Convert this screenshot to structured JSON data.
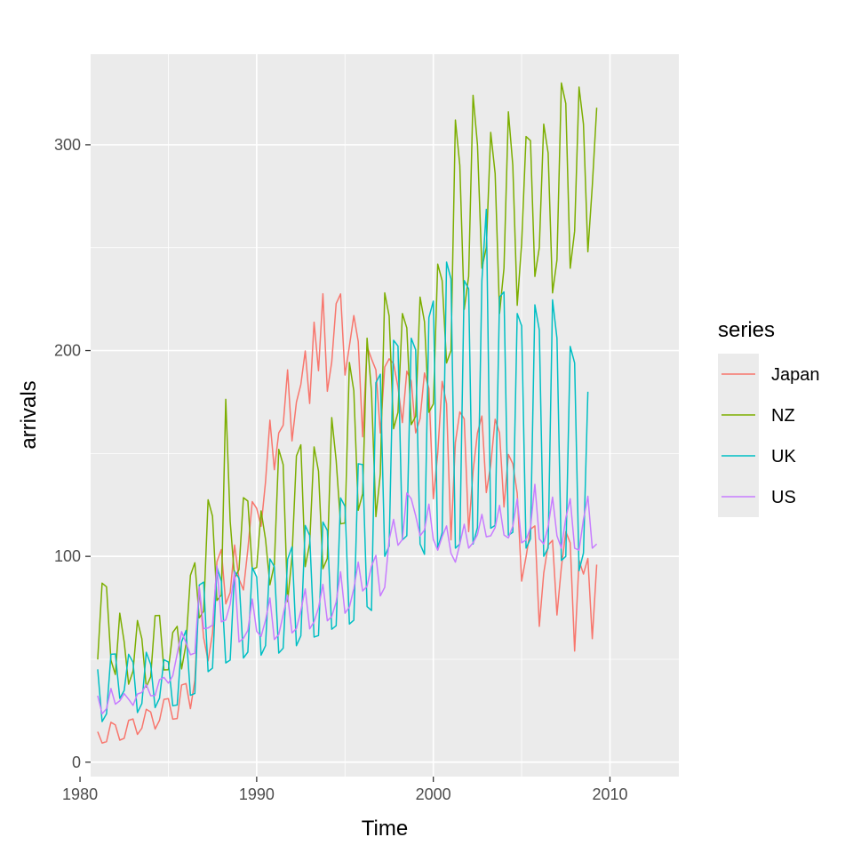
{
  "chart_data": {
    "type": "line",
    "xlabel": "Time",
    "ylabel": "arrivals",
    "xlim": [
      1980.6,
      2013.9
    ],
    "ylim": [
      -7,
      344
    ],
    "x_ticks": [
      1980,
      1990,
      2000,
      2010
    ],
    "y_ticks": [
      0,
      100,
      200,
      300
    ],
    "grid": true,
    "legend": {
      "title": "series",
      "position": "right"
    },
    "x_start": 1981.0,
    "x_step": 0.25,
    "series": [
      {
        "name": "Japan",
        "color": "#F8766D",
        "values": [
          14.8,
          9.3,
          10.0,
          19.4,
          18.1,
          10.7,
          11.6,
          20.3,
          21.0,
          13.5,
          16.5,
          25.7,
          24.4,
          16.1,
          20.3,
          30.5,
          30.9,
          20.9,
          21.2,
          37.5,
          38.2,
          26.0,
          39.8,
          84.2,
          60.4,
          49.2,
          62.6,
          97.4,
          103.3,
          76.9,
          82.4,
          105.5,
          89.0,
          83.7,
          103.4,
          126.6,
          123.3,
          114.6,
          136.1,
          166.2,
          142.1,
          160.0,
          163.7,
          190.6,
          156.1,
          174.9,
          183.5,
          199.8,
          174.3,
          213.8,
          190.2,
          227.6,
          180.2,
          194.5,
          222.8,
          227.5,
          188.1,
          202.2,
          217.0,
          204.4,
          158.1,
          202.0,
          196.0,
          190.6,
          160.0,
          192.0,
          196.0,
          193.6,
          182.3,
          165.0,
          190.0,
          185.2,
          160.0,
          166.9,
          189.1,
          181.6,
          128.0,
          150.0,
          185.0,
          174.2,
          108.0,
          155.4,
          170.2,
          166.8,
          112.0,
          141.4,
          160.0,
          168.2,
          131.0,
          144.4,
          166.6,
          160.0,
          124.0,
          149.5,
          145.0,
          130.6,
          88.0,
          99.8,
          113.2,
          114.8,
          66.0,
          91.8,
          105.5,
          107.8,
          71.5,
          94.8,
          112.0,
          106.6,
          54.0,
          98.0,
          91.4,
          99.0,
          60.0,
          96.0
        ]
      },
      {
        "name": "NZ",
        "color": "#7CAE00",
        "values": [
          49.9,
          87.0,
          85.2,
          49.5,
          42.6,
          72.4,
          58.4,
          37.9,
          44.2,
          68.8,
          60.0,
          36.5,
          41.5,
          71.2,
          71.3,
          44.8,
          44.9,
          63.0,
          66.0,
          45.3,
          57.2,
          90.8,
          96.9,
          70.1,
          73.3,
          127.5,
          119.5,
          78.6,
          81.2,
          176.3,
          117.1,
          89.5,
          93.6,
          128.5,
          126.9,
          93.8,
          94.6,
          122.1,
          108.4,
          86.2,
          96.0,
          152.0,
          144.6,
          78.0,
          99.8,
          148.8,
          154.2,
          95.0,
          106.2,
          153.2,
          141.4,
          94.0,
          99.0,
          167.4,
          146.6,
          115.8,
          116.2,
          194.2,
          180.4,
          122.4,
          130.4,
          206.0,
          180.0,
          119.3,
          140.0,
          228.0,
          216.8,
          162.0,
          170.0,
          218.0,
          211.0,
          164.0,
          168.0,
          226.0,
          214.0,
          170.0,
          174.0,
          242.0,
          234.0,
          194.0,
          200.0,
          312.0,
          290.0,
          220.0,
          236.0,
          324.0,
          300.0,
          240.0,
          250.0,
          306.0,
          286.0,
          218.0,
          240.0,
          316.0,
          290.0,
          222.0,
          252.0,
          304.0,
          302.0,
          236.0,
          250.0,
          310.0,
          296.0,
          228.0,
          244.0,
          330.0,
          320.0,
          240.0,
          258.0,
          328.0,
          310.0,
          248.0,
          280.0,
          318.0
        ]
      },
      {
        "name": "UK",
        "color": "#00BFC4",
        "values": [
          45.1,
          19.7,
          23.5,
          52.4,
          52.6,
          31.0,
          34.8,
          52.4,
          48.6,
          24.1,
          28.5,
          53.4,
          47.5,
          26.5,
          31.1,
          49.8,
          48.7,
          27.4,
          27.8,
          58.5,
          64.0,
          32.5,
          33.4,
          86.1,
          87.5,
          44.0,
          45.7,
          94.7,
          88.0,
          48.2,
          49.6,
          92.8,
          89.4,
          50.6,
          53.5,
          94.6,
          90.0,
          52.0,
          56.6,
          98.8,
          95.0,
          53.0,
          55.4,
          98.6,
          104.6,
          56.6,
          61.4,
          115.0,
          110.2,
          60.8,
          61.5,
          116.7,
          112.6,
          64.6,
          66.3,
          128.4,
          124.3,
          67.1,
          69.0,
          145.0,
          144.6,
          75.6,
          73.7,
          184.4,
          188.5,
          100.0,
          105.0,
          205.0,
          202.2,
          108.0,
          110.0,
          206.0,
          200.4,
          106.0,
          101.0,
          216.0,
          224.0,
          104.0,
          111.5,
          243.0,
          234.8,
          104.0,
          106.0,
          234.0,
          230.0,
          106.0,
          114.0,
          234.0,
          268.6,
          113.7,
          115.0,
          226.0,
          228.5,
          110.2,
          111.7,
          218.0,
          212.0,
          104.0,
          108.5,
          222.2,
          210.0,
          100.0,
          104.0,
          224.6,
          206.0,
          98.0,
          100.0,
          202.0,
          194.0,
          93.0,
          101.6,
          180.0
        ]
      },
      {
        "name": "US",
        "color": "#C77CFF",
        "values": [
          32.3,
          23.5,
          26.0,
          35.8,
          28.2,
          29.8,
          33.3,
          30.6,
          27.6,
          33.1,
          33.9,
          37.7,
          32.3,
          32.4,
          40.1,
          41.2,
          38.4,
          42.0,
          52.6,
          63.4,
          58.0,
          52.2,
          53.0,
          85.3,
          64.9,
          65.2,
          66.6,
          95.4,
          68.2,
          69.1,
          76.8,
          92.4,
          58.4,
          60.2,
          64.0,
          79.3,
          63.6,
          61.1,
          68.9,
          79.8,
          59.6,
          62.0,
          71.8,
          81.2,
          62.8,
          64.9,
          73.5,
          84.2,
          64.8,
          68.2,
          75.0,
          86.4,
          68.7,
          70.8,
          77.8,
          92.5,
          72.4,
          75.4,
          84.3,
          97.2,
          83.2,
          85.5,
          95.2,
          100.5,
          80.8,
          85.0,
          108.0,
          118.0,
          105.4,
          108.2,
          130.8,
          128.0,
          119.8,
          110.0,
          112.8,
          125.4,
          108.2,
          103.0,
          109.6,
          114.8,
          101.5,
          97.2,
          106.0,
          115.6,
          104.0,
          106.6,
          110.6,
          120.4,
          109.5,
          110.0,
          114.0,
          124.8,
          110.4,
          109.0,
          114.6,
          128.0,
          106.6,
          108.0,
          114.0,
          135.0,
          108.5,
          106.0,
          114.5,
          128.8,
          110.0,
          104.0,
          118.6,
          128.0,
          104.0,
          103.0,
          118.0,
          129.2,
          104.0,
          106.0
        ]
      }
    ]
  }
}
